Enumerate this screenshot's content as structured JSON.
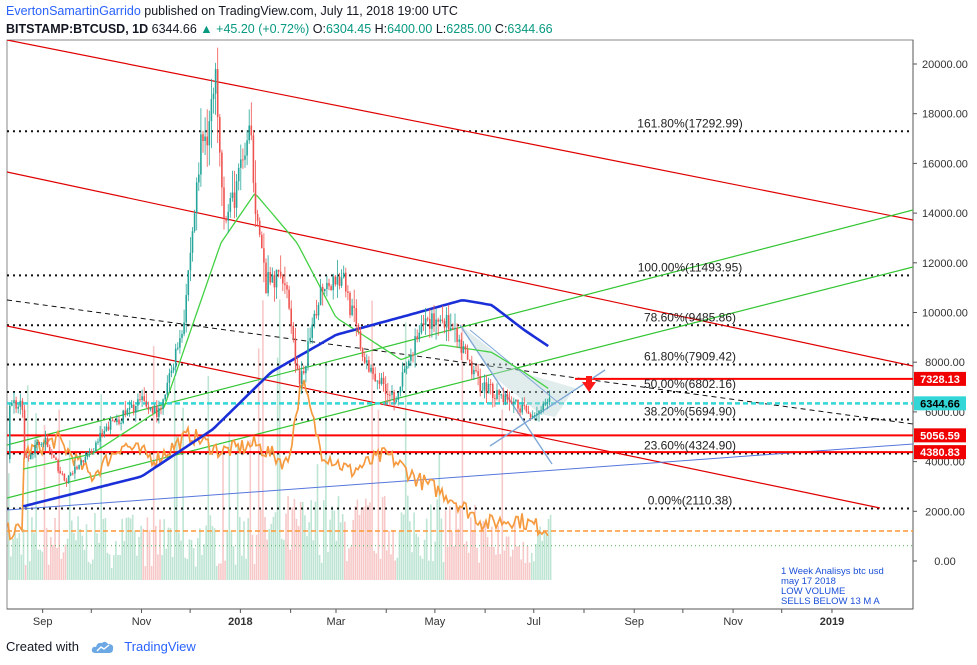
{
  "header": {
    "author": "EvertonSamartinGarrido",
    "published": "published on TradingView.com, July 11, 2018 19:00 UTC",
    "symbol": "BITSTAMP:BTCUSD, 1D",
    "last": "6344.66",
    "change": "+45.20 (+0.72%)",
    "o_label": "O:",
    "o": "6304.45",
    "h_label": "H:",
    "h": "6400.00",
    "l_label": "L:",
    "l": "6285.00",
    "c_label": "C:",
    "c": "6344.66"
  },
  "footer": {
    "created_with": "Created with",
    "brand": "TradingView"
  },
  "chart_data": {
    "type": "candlestick",
    "x_ticks": [
      "Sep",
      "Oct",
      "Nov",
      "Dec",
      "2018",
      "Feb",
      "Mar",
      "Apr",
      "May",
      "Jun",
      "Jul",
      "Aug",
      "Sep",
      "Oct",
      "Nov",
      "Dec",
      "2019"
    ],
    "x_tick_labels_shown": [
      "Sep",
      "Nov",
      "2018",
      "Mar",
      "May",
      "Jul",
      "Sep",
      "Nov",
      "2019"
    ],
    "y_ticks": [
      0,
      2000,
      4000,
      6000,
      8000,
      10000,
      12000,
      14000,
      16000,
      18000,
      20000
    ],
    "y_tick_labels": [
      "0.00",
      "2000.00",
      "4000.00",
      "6000.00",
      "8000.00",
      "10000.00",
      "12000.00",
      "14000.00",
      "16000.00",
      "18000.00",
      "20000.00"
    ],
    "ylim": [
      -800,
      21200
    ],
    "fib_levels": [
      {
        "label": "161.80%(17292.99)",
        "price": 17292.99
      },
      {
        "label": "100.00%(11493.95)",
        "price": 11493.95
      },
      {
        "label": "78.60%(9485.86)",
        "price": 9485.86
      },
      {
        "label": "61.80%(7909.42)",
        "price": 7909.42
      },
      {
        "label": "50.00%(6802.16)",
        "price": 6802.16
      },
      {
        "label": "38.20%(5694.90)",
        "price": 5694.9
      },
      {
        "label": "23.60%(4324.90)",
        "price": 4324.9
      },
      {
        "label": "0.00%(2110.38)",
        "price": 2110.38
      }
    ],
    "price_labels": [
      {
        "label": "7328.13",
        "price": 7328.13,
        "color": "#f00000"
      },
      {
        "label": "6344.66",
        "price": 6344.66,
        "color": "#33d6d6"
      },
      {
        "label": "5056.59",
        "price": 5056.59,
        "color": "#f00000"
      },
      {
        "label": "4380.83",
        "price": 4380.83,
        "color": "#f00000"
      }
    ],
    "price_path": [
      [
        "2017-08-20",
        4100
      ],
      [
        "2017-09-01",
        4900
      ],
      [
        "2017-09-14",
        3200
      ],
      [
        "2017-09-28",
        4200
      ],
      [
        "2017-10-12",
        5500
      ],
      [
        "2017-10-31",
        6400
      ],
      [
        "2017-11-12",
        5900
      ],
      [
        "2017-11-26",
        9500
      ],
      [
        "2017-12-07",
        16500
      ],
      [
        "2017-12-17",
        19300
      ],
      [
        "2017-12-22",
        13500
      ],
      [
        "2018-01-06",
        17100
      ],
      [
        "2018-01-16",
        11000
      ],
      [
        "2018-01-28",
        11600
      ],
      [
        "2018-02-06",
        6900
      ],
      [
        "2018-02-20",
        11200
      ],
      [
        "2018-03-05",
        11500
      ],
      [
        "2018-03-18",
        8000
      ],
      [
        "2018-04-06",
        6600
      ],
      [
        "2018-04-24",
        9600
      ],
      [
        "2018-05-06",
        9800
      ],
      [
        "2018-05-28",
        7200
      ],
      [
        "2018-06-10",
        6700
      ],
      [
        "2018-06-28",
        5900
      ],
      [
        "2018-07-11",
        6344.66
      ]
    ],
    "ma_blue": [
      [
        "2017-08-20",
        2200
      ],
      [
        "2017-11-01",
        3400
      ],
      [
        "2017-12-15",
        5300
      ],
      [
        "2018-01-20",
        7600
      ],
      [
        "2018-03-01",
        9100
      ],
      [
        "2018-04-15",
        9900
      ],
      [
        "2018-05-18",
        10500
      ],
      [
        "2018-06-05",
        10300
      ],
      [
        "2018-06-25",
        9300
      ],
      [
        "2018-07-11",
        8600
      ]
    ],
    "ma_green": [
      [
        "2017-08-20",
        3700
      ],
      [
        "2017-10-01",
        4300
      ],
      [
        "2017-11-15",
        6200
      ],
      [
        "2017-12-20",
        12800
      ],
      [
        "2018-01-10",
        14800
      ],
      [
        "2018-02-05",
        12800
      ],
      [
        "2018-03-01",
        9800
      ],
      [
        "2018-04-10",
        8100
      ],
      [
        "2018-05-05",
        8700
      ],
      [
        "2018-06-05",
        8400
      ],
      [
        "2018-06-25",
        7600
      ],
      [
        "2018-07-11",
        6900
      ]
    ],
    "volume_oscillator": [
      [
        "2017-08-20",
        4300
      ],
      [
        "2017-09-10",
        4900
      ],
      [
        "2017-10-01",
        3400
      ],
      [
        "2017-10-20",
        4700
      ],
      [
        "2017-11-10",
        4100
      ],
      [
        "2017-12-01",
        5100
      ],
      [
        "2017-12-20",
        4400
      ],
      [
        "2018-01-10",
        4700
      ],
      [
        "2018-01-30",
        3900
      ],
      [
        "2018-02-08",
        7300
      ],
      [
        "2018-02-20",
        4400
      ],
      [
        "2018-03-10",
        3600
      ],
      [
        "2018-04-01",
        4300
      ],
      [
        "2018-04-20",
        3300
      ],
      [
        "2018-05-10",
        2600
      ],
      [
        "2018-06-01",
        1500
      ],
      [
        "2018-06-20",
        1700
      ],
      [
        "2018-07-11",
        1200
      ]
    ],
    "annotation": [
      "1 Week Analisys btc usd",
      "may 17 2018",
      "LOW VOLUME",
      "SELLS BELOW 13 M A"
    ]
  }
}
